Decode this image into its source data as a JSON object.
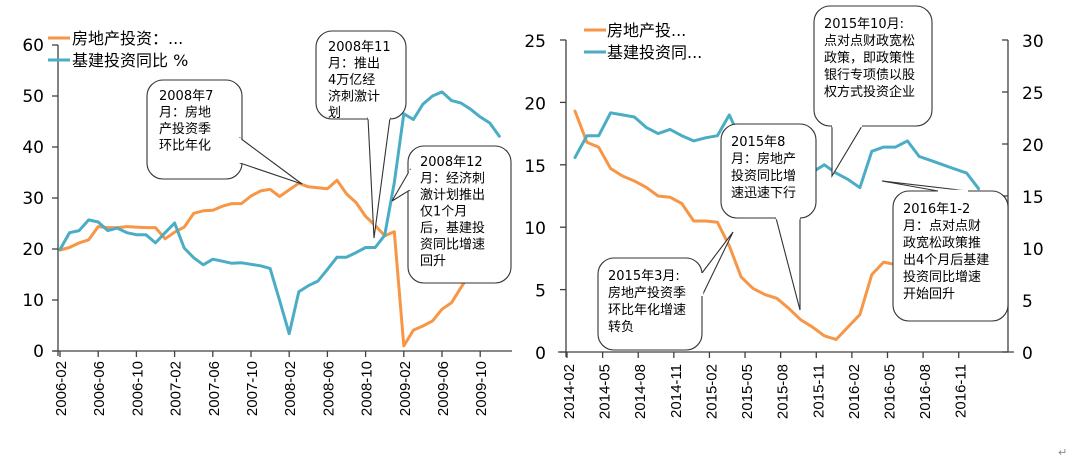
{
  "colors": {
    "real_estate": "#F79646",
    "infrastructure": "#4BACC6",
    "axis": "#404040"
  },
  "chart_data": [
    {
      "type": "line",
      "title": "",
      "legend": [
        "房地产投资：...",
        "基建投资同比 %"
      ],
      "legend_position": "top-left",
      "xlabel": "",
      "ylabel": "",
      "ylim": [
        0,
        60
      ],
      "yticks": [
        "0",
        "10",
        "20",
        "30",
        "40",
        "50",
        "60"
      ],
      "x_tick_labels": [
        "2006-02",
        "2006-06",
        "2006-10",
        "2007-02",
        "2007-06",
        "2007-10",
        "2008-02",
        "2008-06",
        "2008-10",
        "2009-02",
        "2009-06",
        "2009-10"
      ],
      "x_start": "2006-02",
      "series": [
        {
          "name": "房地产投资：...",
          "color": "#F79646",
          "values": [
            19.8,
            20.3,
            21.2,
            21.8,
            24.4,
            24.2,
            24.2,
            24.4,
            24.3,
            24.2,
            24.2,
            22.0,
            23.3,
            24.3,
            27.0,
            27.5,
            27.6,
            28.4,
            28.9,
            28.9,
            30.4,
            31.4,
            31.7,
            30.3,
            31.6,
            32.9,
            32.2,
            32.0,
            31.8,
            33.5,
            30.8,
            29.1,
            26.4,
            24.6,
            22.6,
            23.4,
            1.0,
            4.1,
            4.9,
            5.9,
            8.2,
            9.5,
            12.5,
            15.4,
            16.7,
            17.7,
            16.1
          ]
        },
        {
          "name": "基建投资同比 %",
          "color": "#4BACC6",
          "values": [
            19.9,
            23.2,
            23.6,
            25.7,
            25.3,
            23.6,
            24.1,
            23.2,
            22.8,
            22.8,
            21.2,
            23.2,
            25.1,
            20.2,
            18.3,
            16.9,
            18.0,
            17.6,
            17.2,
            17.3,
            17.0,
            16.7,
            16.2,
            9.9,
            3.4,
            11.6,
            12.8,
            13.7,
            16.0,
            18.4,
            18.4,
            19.3,
            20.3,
            20.3,
            22.7,
            33.0,
            46.5,
            45.4,
            48.4,
            50.0,
            50.8,
            49.1,
            48.6,
            47.4,
            45.9,
            44.7,
            42.1
          ]
        }
      ],
      "annotations": [
        {
          "id": "jul-2008",
          "lines": [
            "2008年7",
            "月：房地",
            "产投资季",
            "环比年化"
          ],
          "target": "2008-07"
        },
        {
          "id": "nov-2008",
          "lines": [
            "2008年11",
            "月：推出",
            "4万亿经",
            "济刺激计",
            "划"
          ],
          "target": "2008-11"
        },
        {
          "id": "dec-2008",
          "lines": [
            "2008年12",
            "月：经济刺",
            "激计划推出",
            "仅1个月",
            "后，基建投",
            "资同比增速",
            "回升"
          ],
          "target": "2009-01"
        }
      ]
    },
    {
      "type": "line",
      "title": "",
      "legend": [
        "房地产投...",
        "基建投资同..."
      ],
      "legend_position": "top-left",
      "xlabel": "",
      "ylabel": "",
      "ylim": [
        0,
        25
      ],
      "yticks": [
        "0",
        "5",
        "10",
        "15",
        "20",
        "25"
      ],
      "y2lim": [
        0,
        30
      ],
      "y2ticks": [
        "0",
        "5",
        "10",
        "15",
        "20",
        "25",
        "30"
      ],
      "x_tick_labels": [
        "2014-02",
        "2014-05",
        "2014-08",
        "2014-11",
        "2015-02",
        "2015-05",
        "2015-08",
        "2015-11",
        "2016-02",
        "2016-05",
        "2016-08",
        "2016-11"
      ],
      "x_start": "2014-02",
      "series": [
        {
          "name": "房地产投...",
          "color": "#F79646",
          "axis": "left",
          "values": [
            19.3,
            16.8,
            16.4,
            14.7,
            14.1,
            13.7,
            13.2,
            12.5,
            12.4,
            11.9,
            10.5,
            10.5,
            10.4,
            8.5,
            6.0,
            5.1,
            4.6,
            4.3,
            3.5,
            2.6,
            2.0,
            1.3,
            1.0,
            2.0,
            3.0,
            6.2,
            7.2,
            7.0,
            6.1,
            5.4,
            5.3,
            5.4,
            6.2,
            6.6,
            6.8
          ]
        },
        {
          "name": "基建投资同...",
          "color": "#4BACC6",
          "axis": "right",
          "values": [
            18.7,
            20.8,
            20.8,
            23.0,
            22.8,
            22.6,
            21.6,
            21.0,
            21.4,
            20.8,
            20.3,
            20.6,
            20.8,
            22.8,
            20.3,
            19.1,
            19.4,
            18.9,
            18.8,
            18.2,
            17.3,
            18.0,
            17.2,
            16.6,
            15.8,
            19.3,
            19.7,
            19.7,
            20.3,
            18.8,
            18.4,
            18.0,
            17.6,
            17.2,
            15.7
          ]
        }
      ],
      "annotations": [
        {
          "id": "oct-2015",
          "lines": [
            "2015年10月:",
            "点对点财政宽松",
            "政策，即政策性",
            "银行专项债以股",
            "权方式投资企业"
          ],
          "target": "2015-10"
        },
        {
          "id": "aug-2015",
          "lines": [
            "2015年8",
            "月：房地产",
            "投资同比增",
            "速迅速下行"
          ],
          "target": "2015-08"
        },
        {
          "id": "mar-2015",
          "lines": [
            "2015年3月:",
            "房地产投资季",
            "环比年化增速",
            "转负"
          ],
          "target": "2015-03"
        },
        {
          "id": "jan-feb-2016",
          "lines": [
            "2016年1-2",
            "月：点对点财",
            "政宽松政策推",
            "出4个月后基建",
            "投资同比增速",
            "开始回升"
          ],
          "target": "2016-02"
        }
      ]
    }
  ],
  "paragraph_mark": "↵"
}
